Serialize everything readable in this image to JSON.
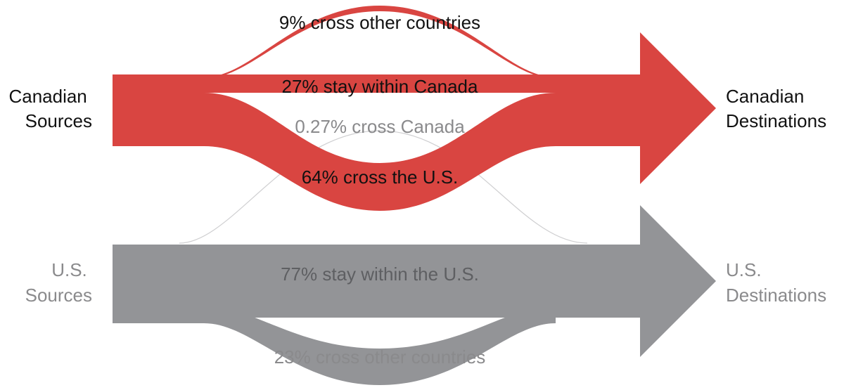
{
  "colors": {
    "canada": "#d94541",
    "us": "#939497",
    "thin_line": "#cfcfd1",
    "dark_text": "#111111",
    "grey_text": "#8a8a8c"
  },
  "sources": {
    "canada": [
      "Canadian",
      "Sources"
    ],
    "us": [
      "U.S.",
      "Sources"
    ]
  },
  "destinations": {
    "canada": [
      "Canadian",
      "Destinations"
    ],
    "us": [
      "U.S.",
      "Destinations"
    ]
  },
  "flows": [
    {
      "id": "ca-other",
      "from": "Canadian Sources",
      "to": "Canadian Destinations",
      "label": "9% cross other countries",
      "percent": 9
    },
    {
      "id": "ca-stay",
      "from": "Canadian Sources",
      "to": "Canadian Destinations",
      "label": "27% stay within Canada",
      "percent": 27
    },
    {
      "id": "ca-us",
      "from": "Canadian Sources",
      "to": "Canadian Destinations",
      "label": "64% cross the U.S.",
      "percent": 64
    },
    {
      "id": "us-ca",
      "from": "U.S. Sources",
      "to": "U.S. Destinations",
      "label": "0.27% cross Canada",
      "percent": 0.27
    },
    {
      "id": "us-stay",
      "from": "U.S. Sources",
      "to": "U.S. Destinations",
      "label": "77% stay within the U.S.",
      "percent": 77
    },
    {
      "id": "us-other",
      "from": "U.S. Sources",
      "to": "U.S. Destinations",
      "label": "23% cross other countries",
      "percent": 23
    }
  ]
}
